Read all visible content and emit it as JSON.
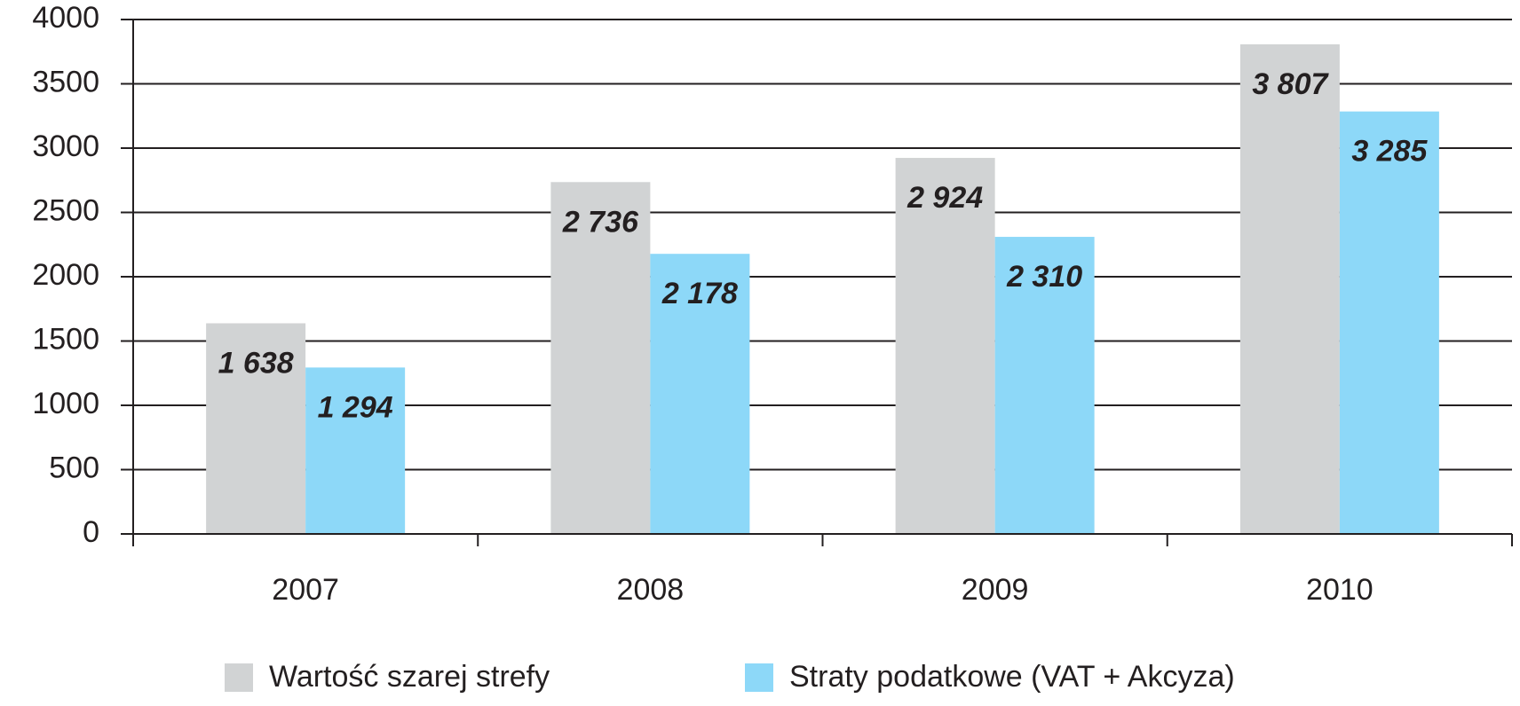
{
  "chart_data": {
    "type": "bar",
    "categories": [
      "2007",
      "2008",
      "2009",
      "2010"
    ],
    "series": [
      {
        "name": "Wartość szarej strefy",
        "color": "#d1d3d4",
        "values": [
          1638,
          2736,
          2924,
          3807
        ],
        "value_labels": [
          "1 638",
          "2 736",
          "2 924",
          "3 807"
        ]
      },
      {
        "name": "Straty podatkowe (VAT + Akcyza)",
        "color": "#8dd8f8",
        "values": [
          1294,
          2178,
          2310,
          3285
        ],
        "value_labels": [
          "1 294",
          "2 178",
          "2 310",
          "3 285"
        ]
      }
    ],
    "ylim": [
      0,
      4000
    ],
    "yticks": [
      0,
      500,
      1000,
      1500,
      2000,
      2500,
      3000,
      3500,
      4000
    ],
    "grid": true
  }
}
